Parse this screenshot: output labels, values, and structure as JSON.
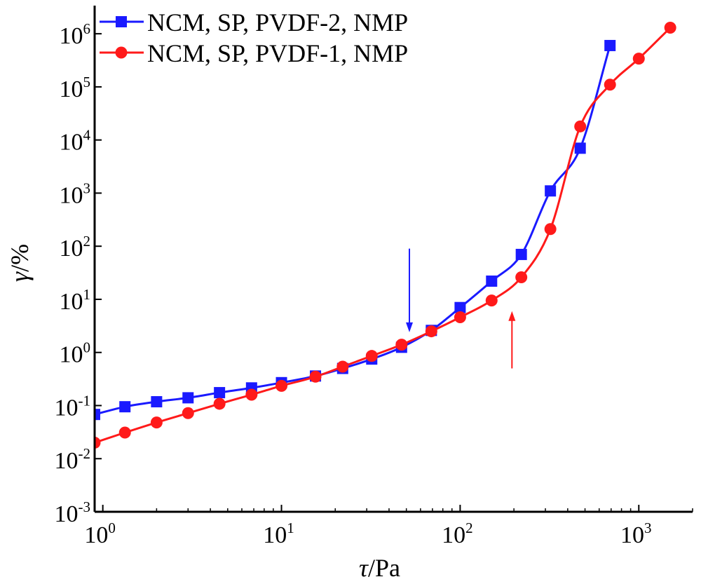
{
  "chart_data": {
    "type": "line",
    "xscale": "log",
    "yscale": "log",
    "xlim": [
      0.9,
      2000
    ],
    "ylim": [
      0.001,
      3000000
    ],
    "xlabel": "τ/Pa",
    "ylabel": "γ/%",
    "xticks": [
      {
        "value": 1,
        "base": "10",
        "exp": "0"
      },
      {
        "value": 10,
        "base": "10",
        "exp": "1"
      },
      {
        "value": 100,
        "base": "10",
        "exp": "2"
      },
      {
        "value": 1000,
        "base": "10",
        "exp": "3"
      }
    ],
    "yticks": [
      {
        "value": 0.001,
        "base": "10",
        "exp": "-3"
      },
      {
        "value": 0.01,
        "base": "10",
        "exp": "-2"
      },
      {
        "value": 0.1,
        "base": "10",
        "exp": "-1"
      },
      {
        "value": 1,
        "base": "10",
        "exp": "0"
      },
      {
        "value": 10,
        "base": "10",
        "exp": "1"
      },
      {
        "value": 100,
        "base": "10",
        "exp": "2"
      },
      {
        "value": 1000,
        "base": "10",
        "exp": "3"
      },
      {
        "value": 10000,
        "base": "10",
        "exp": "4"
      },
      {
        "value": 100000,
        "base": "10",
        "exp": "5"
      },
      {
        "value": 1000000,
        "base": "10",
        "exp": "6"
      }
    ],
    "legend_position": "top-left",
    "grid": false,
    "series": [
      {
        "name": "NCM, SP, PVDF-2, NMP",
        "color": "#1a1aff",
        "marker": "square",
        "points": [
          [
            0.9,
            0.068
          ],
          [
            1.33,
            0.095
          ],
          [
            2.0,
            0.118
          ],
          [
            3.0,
            0.14
          ],
          [
            4.5,
            0.175
          ],
          [
            6.8,
            0.215
          ],
          [
            10.0,
            0.27
          ],
          [
            15.5,
            0.36
          ],
          [
            22.0,
            0.5
          ],
          [
            32.0,
            0.75
          ],
          [
            47.0,
            1.25
          ],
          [
            69.0,
            2.6
          ],
          [
            100.0,
            7.0
          ],
          [
            150.0,
            22.0
          ],
          [
            220.0,
            70.0
          ],
          [
            320.0,
            1100.0
          ],
          [
            470.0,
            7000.0
          ],
          [
            690.0,
            600000.0
          ]
        ]
      },
      {
        "name": "NCM, SP, PVDF-1, NMP",
        "color": "#ff1a1a",
        "marker": "circle",
        "points": [
          [
            0.9,
            0.02
          ],
          [
            1.33,
            0.031
          ],
          [
            2.0,
            0.048
          ],
          [
            3.0,
            0.072
          ],
          [
            4.5,
            0.108
          ],
          [
            6.8,
            0.16
          ],
          [
            10.0,
            0.235
          ],
          [
            15.5,
            0.35
          ],
          [
            22.0,
            0.54
          ],
          [
            32.0,
            0.86
          ],
          [
            47.0,
            1.4
          ],
          [
            69.0,
            2.5
          ],
          [
            100.0,
            4.6
          ],
          [
            150.0,
            9.5
          ],
          [
            220.0,
            26.0
          ],
          [
            320.0,
            210.0
          ],
          [
            470.0,
            18000.0
          ],
          [
            690.0,
            110000.0
          ],
          [
            1000.0,
            340000.0
          ],
          [
            1500.0,
            1300000.0
          ]
        ]
      }
    ],
    "annotations": [
      {
        "type": "arrow",
        "color": "#1a1aff",
        "x": 52,
        "y_from": 90,
        "y_to": 2.4
      },
      {
        "type": "arrow",
        "color": "#ff1a1a",
        "x": 195,
        "y_from": 0.5,
        "y_to": 6.0
      }
    ]
  }
}
